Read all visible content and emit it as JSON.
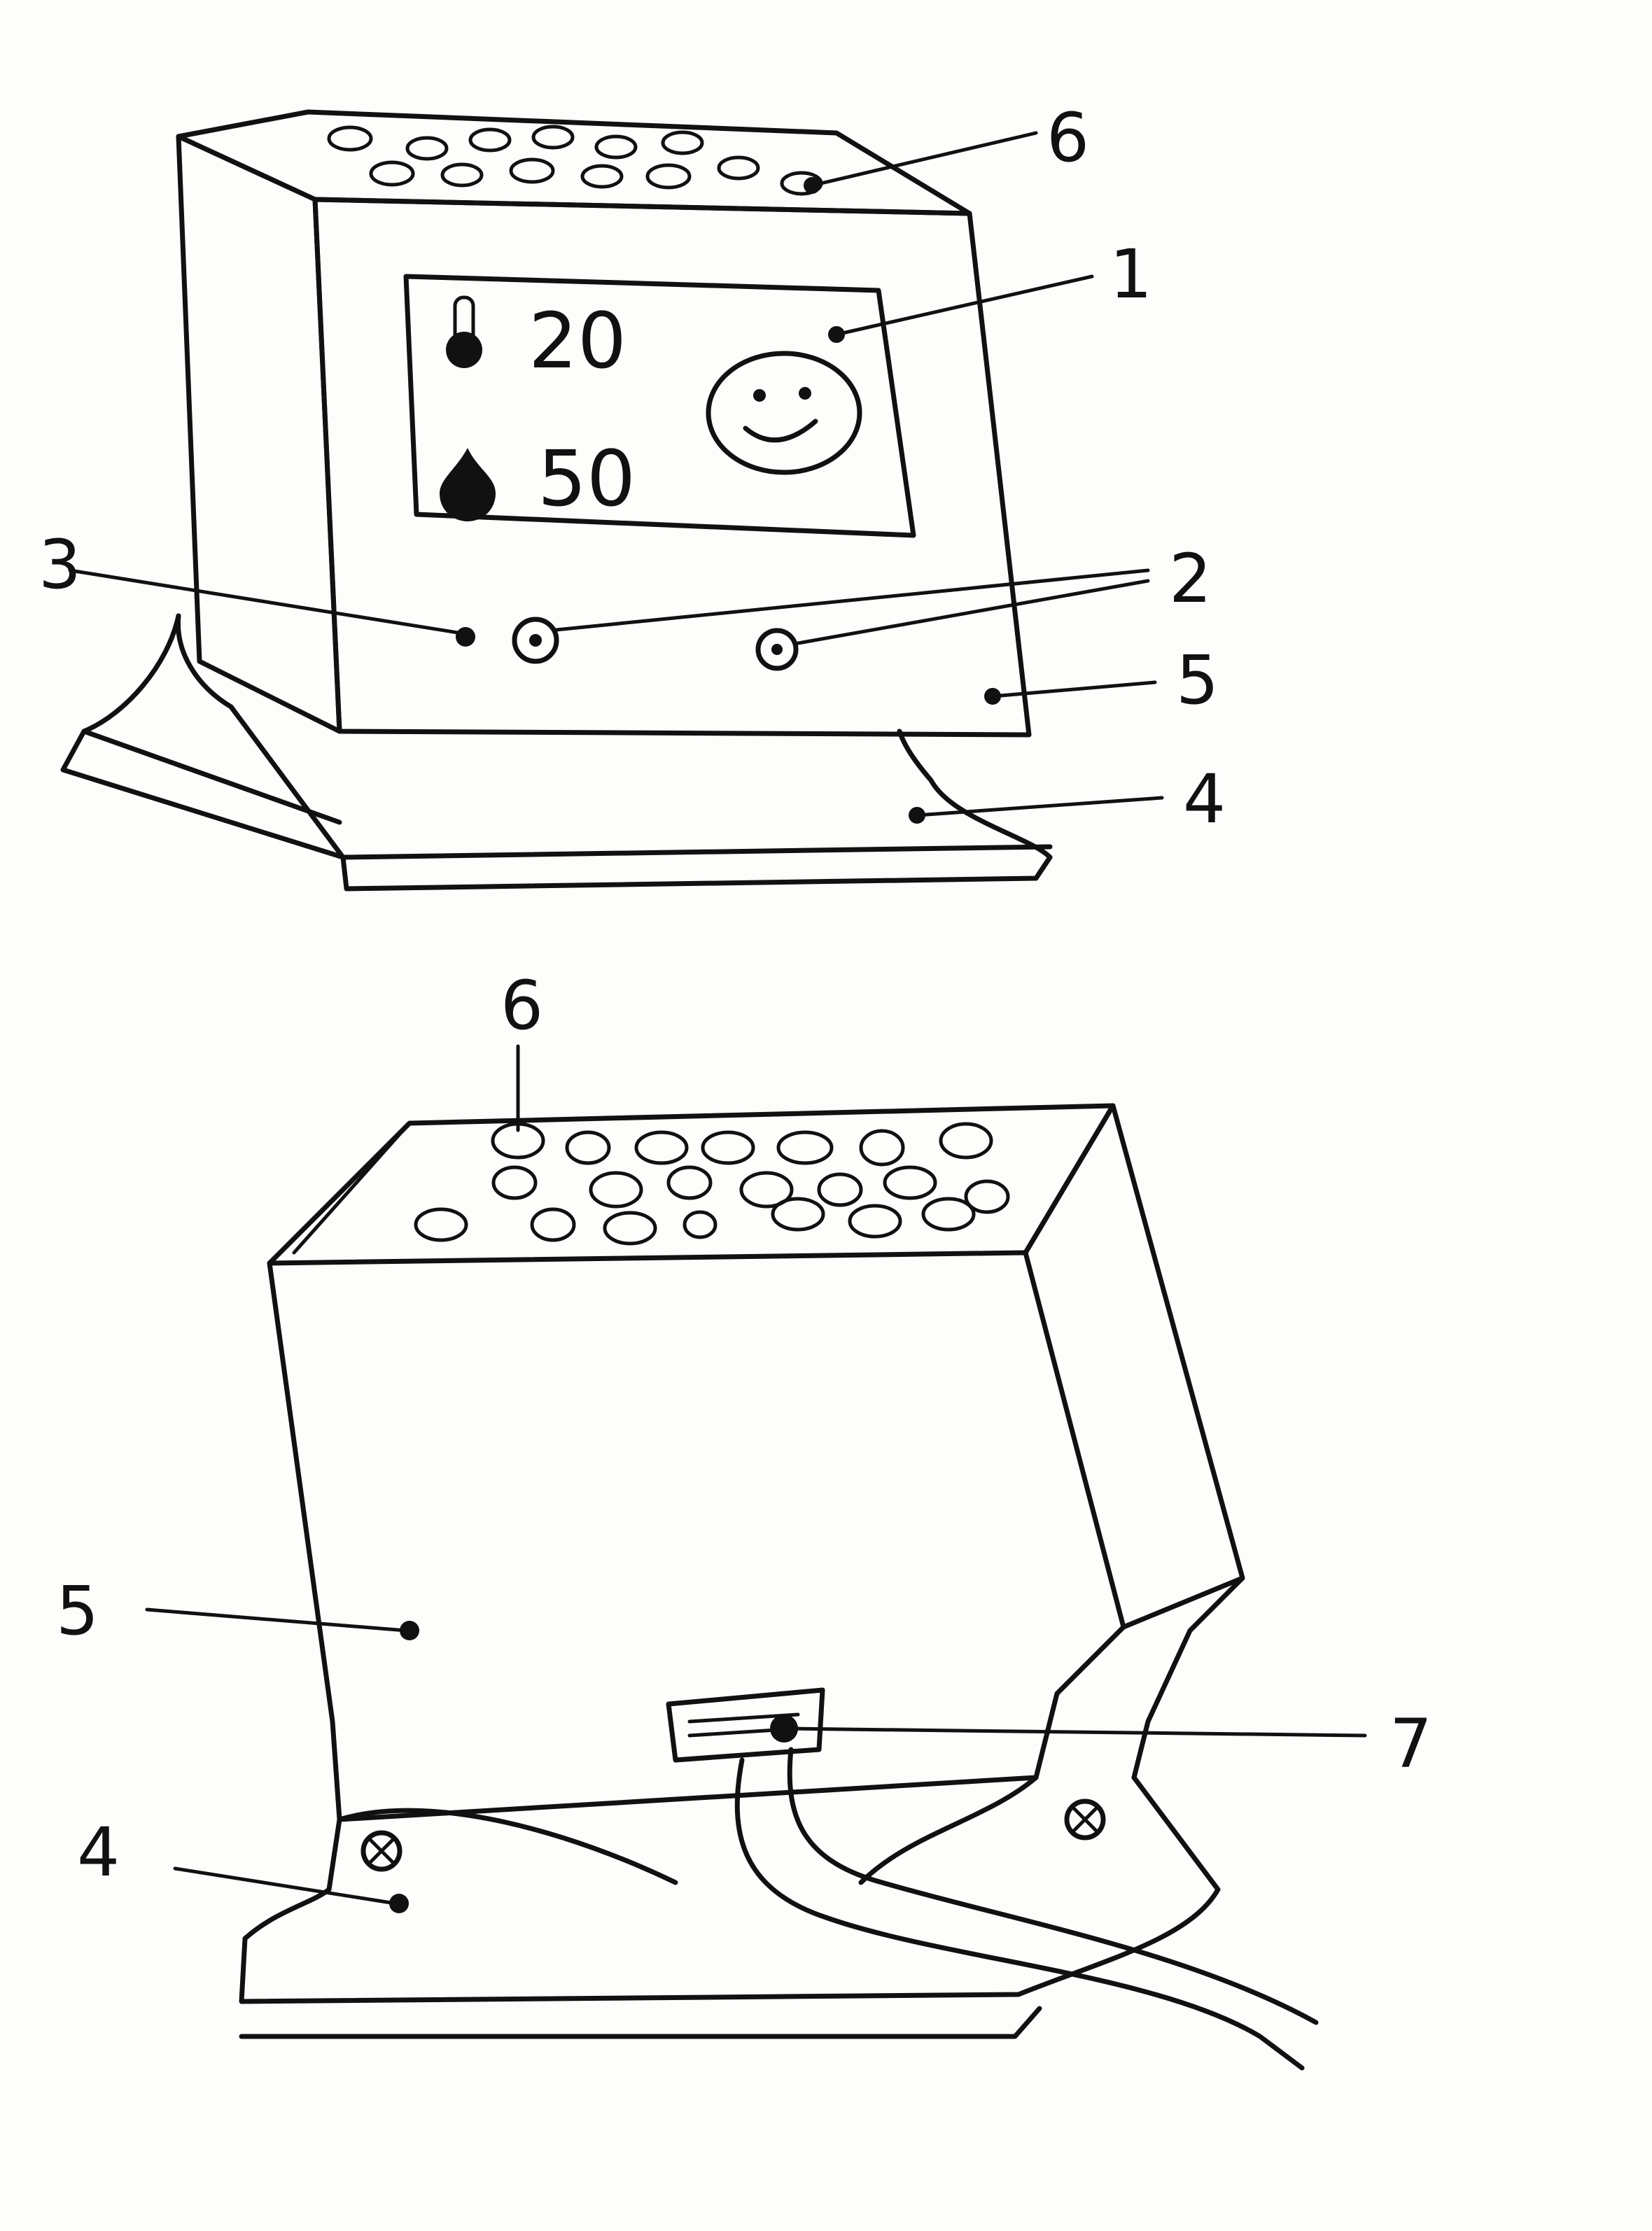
{
  "figure1": {
    "labels": {
      "l1": "1",
      "l2": "2",
      "l3": "3",
      "l4": "4",
      "l5": "5",
      "l6": "6"
    },
    "display": {
      "temperature": "20",
      "humidity": "50"
    },
    "icons": [
      "thermometer-icon",
      "water-drop-icon",
      "smiley-face-icon"
    ]
  },
  "figure2": {
    "labels": {
      "l4": "4",
      "l5": "5",
      "l6": "6",
      "l7": "7"
    },
    "icons": [
      "screw-icon"
    ]
  }
}
